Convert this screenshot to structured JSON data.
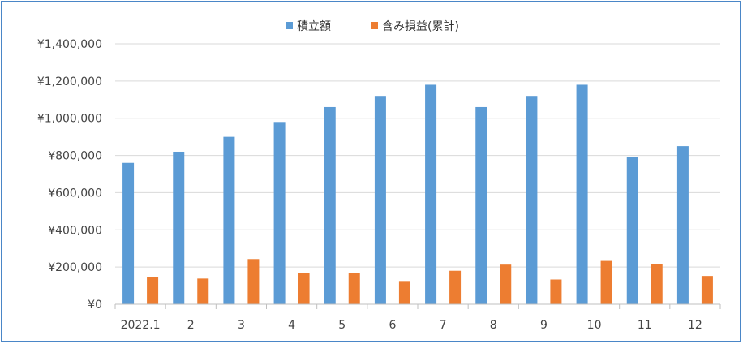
{
  "chart_data": {
    "type": "bar",
    "title": "",
    "xlabel": "",
    "ylabel": "",
    "categories": [
      "2022.1",
      "2",
      "3",
      "4",
      "5",
      "6",
      "7",
      "8",
      "9",
      "10",
      "11",
      "12"
    ],
    "series": [
      {
        "name": "積立額",
        "color": "#5b9bd5",
        "values": [
          760000,
          820000,
          900000,
          980000,
          1060000,
          1120000,
          1180000,
          1060000,
          1120000,
          1180000,
          790000,
          850000
        ]
      },
      {
        "name": "含み損益(累計)",
        "color": "#ed7d31",
        "values": [
          145000,
          138000,
          243000,
          168000,
          168000,
          125000,
          180000,
          213000,
          133000,
          233000,
          217000,
          152000
        ]
      }
    ],
    "ylim": [
      0,
      1400000
    ],
    "yticks": [
      0,
      200000,
      400000,
      600000,
      800000,
      1000000,
      1200000,
      1400000
    ],
    "ytick_labels": [
      "¥0",
      "¥200,000",
      "¥400,000",
      "¥600,000",
      "¥800,000",
      "¥1,000,000",
      "¥1,200,000",
      "¥1,400,000"
    ],
    "grid": true,
    "legend_position": "top-center",
    "gridline_color": "#d9d9d9",
    "axis_color": "#bfbfbf"
  }
}
